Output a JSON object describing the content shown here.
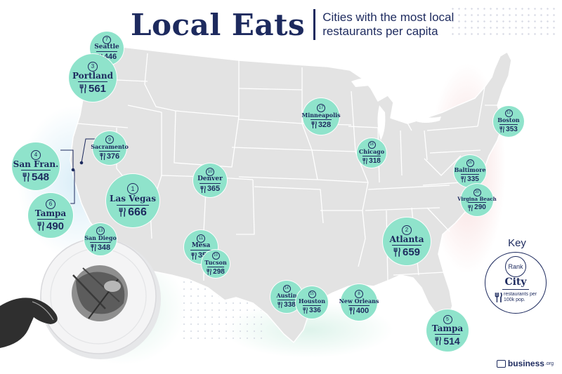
{
  "header": {
    "title": "Local Eats",
    "subtitle": "Cities with the most local restaurants per capita"
  },
  "colors": {
    "navy": "#1d2a5e",
    "bubble": "#8fe3cb",
    "map": "#e3e3e3",
    "border": "#ffffff"
  },
  "icons": {
    "utensils": "fork-and-knife-icon",
    "brand": "business-org-logo-icon"
  },
  "cities": [
    {
      "id": "seattle",
      "rank": "7",
      "name": "Seattle",
      "value": "446"
    },
    {
      "id": "portland",
      "rank": "3",
      "name": "Portland",
      "value": "561"
    },
    {
      "id": "sacramento",
      "rank": "9",
      "name": "Sacramento",
      "value": "376"
    },
    {
      "id": "san-francisco",
      "rank": "4",
      "name": "San Fran.",
      "value": "548"
    },
    {
      "id": "las-vegas",
      "rank": "1",
      "name": "Las Vegas",
      "value": "666"
    },
    {
      "id": "tampa-west",
      "rank": "6",
      "name": "Tampa",
      "value": "490"
    },
    {
      "id": "san-diego",
      "rank": "13",
      "name": "San Diego",
      "value": "348"
    },
    {
      "id": "denver",
      "rank": "10",
      "name": "Denver",
      "value": "365"
    },
    {
      "id": "mesa",
      "rank": "11",
      "name": "Mesa",
      "value": "356"
    },
    {
      "id": "tucson",
      "rank": "19",
      "name": "Tucson",
      "value": "298"
    },
    {
      "id": "minneapolis",
      "rank": "17",
      "name": "Minneapolis",
      "value": "328"
    },
    {
      "id": "chicago",
      "rank": "18",
      "name": "Chicago",
      "value": "318"
    },
    {
      "id": "boston",
      "rank": "12",
      "name": "Boston",
      "value": "353"
    },
    {
      "id": "baltimore",
      "rank": "16",
      "name": "Baltimore",
      "value": "335"
    },
    {
      "id": "virginia-beach",
      "rank": "20",
      "name": "Virgina Beach",
      "value": "290"
    },
    {
      "id": "atlanta",
      "rank": "2",
      "name": "Atlanta",
      "value": "659"
    },
    {
      "id": "austin",
      "rank": "14",
      "name": "Austin",
      "value": "338"
    },
    {
      "id": "houston",
      "rank": "15",
      "name": "Houston",
      "value": "336"
    },
    {
      "id": "new-orleans",
      "rank": "8",
      "name": "New Orleans",
      "value": "400"
    },
    {
      "id": "tampa-fl",
      "rank": "5",
      "name": "Tampa",
      "value": "514"
    }
  ],
  "key": {
    "title": "Key",
    "rank_label": "Rank",
    "city_label": "City",
    "desc": "restaurants per 100k pop."
  },
  "brand": {
    "name": "business",
    "tld": ".org"
  }
}
